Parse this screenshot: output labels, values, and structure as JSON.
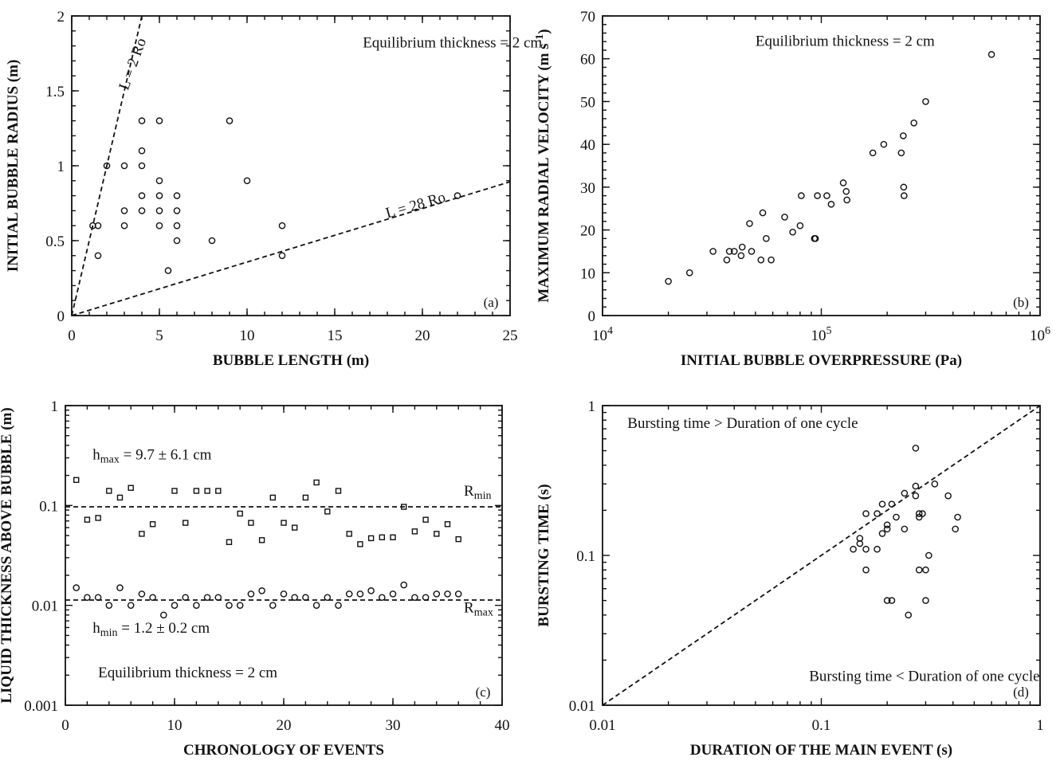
{
  "chart_data": [
    {
      "id": "a",
      "type": "scatter",
      "panel_label": "(a)",
      "xlabel": "BUBBLE LENGTH (m)",
      "ylabel": "INITIAL BUBBLE RADIUS (m)",
      "xscale": "linear",
      "yscale": "linear",
      "xlim": [
        0,
        25
      ],
      "ylim": [
        0,
        2
      ],
      "x_ticks": [
        0,
        5,
        10,
        15,
        20,
        25
      ],
      "x_tick_labels": [
        "0",
        "5",
        "10",
        "15",
        "20",
        "25"
      ],
      "y_ticks": [
        0,
        0.5,
        1,
        1.5,
        2
      ],
      "y_tick_labels": [
        "0",
        "0.5",
        "1",
        "1.5",
        "2"
      ],
      "grid": false,
      "marker": "circle",
      "annotations": [
        {
          "text": "Equilibrium thickness = 2 cm",
          "x": 16.6,
          "y": 1.79
        },
        {
          "text": "L = 2 Ro",
          "x": 3.2,
          "y": 1.5,
          "rotate": -70
        },
        {
          "text": "L = 28 Ro",
          "x": 18.0,
          "y": 0.65,
          "rotate": -16
        }
      ],
      "lines": [
        {
          "label": "L = 2 Ro",
          "points": [
            [
              0,
              0
            ],
            [
              4,
              2
            ]
          ]
        },
        {
          "label": "L = 28 Ro",
          "points": [
            [
              0,
              0
            ],
            [
              25,
              0.893
            ]
          ]
        }
      ],
      "points": [
        [
          1.2,
          0.6
        ],
        [
          1.5,
          0.6
        ],
        [
          1.5,
          0.4
        ],
        [
          2.0,
          1.0
        ],
        [
          3.0,
          1.0
        ],
        [
          3.0,
          0.7
        ],
        [
          3.0,
          0.6
        ],
        [
          4.0,
          1.3
        ],
        [
          4.0,
          1.1
        ],
        [
          4.0,
          1.0
        ],
        [
          4.0,
          0.8
        ],
        [
          4.0,
          0.7
        ],
        [
          5.0,
          1.3
        ],
        [
          5.0,
          0.9
        ],
        [
          5.0,
          0.8
        ],
        [
          5.0,
          0.7
        ],
        [
          5.0,
          0.6
        ],
        [
          5.5,
          0.3
        ],
        [
          6.0,
          0.8
        ],
        [
          6.0,
          0.7
        ],
        [
          6.0,
          0.6
        ],
        [
          6.0,
          0.5
        ],
        [
          8.0,
          0.5
        ],
        [
          9.0,
          1.3
        ],
        [
          10.0,
          0.9
        ],
        [
          12.0,
          0.6
        ],
        [
          12.0,
          0.4
        ],
        [
          22.0,
          0.8
        ]
      ]
    },
    {
      "id": "b",
      "type": "scatter",
      "panel_label": "(b)",
      "xlabel": "INITIAL BUBBLE OVERPRESSURE (Pa)",
      "ylabel": "MAXIMUM RADIAL VELOCITY (m s-1)",
      "xscale": "log",
      "yscale": "linear",
      "xlim": [
        10000,
        1000000
      ],
      "ylim": [
        0,
        70
      ],
      "x_ticks": [
        10000,
        100000,
        1000000
      ],
      "x_tick_labels": [
        "10^4",
        "10^5",
        "10^6"
      ],
      "y_ticks": [
        0,
        10,
        20,
        30,
        40,
        50,
        60,
        70
      ],
      "y_tick_labels": [
        "0",
        "10",
        "20",
        "30",
        "40",
        "50",
        "60",
        "70"
      ],
      "grid": false,
      "marker": "circle",
      "annotations": [
        {
          "text": "Equilibrium thickness = 2 cm",
          "x": 50000,
          "y": 63
        }
      ],
      "points": [
        [
          20000,
          8
        ],
        [
          25000,
          10
        ],
        [
          32000,
          15
        ],
        [
          37000,
          13
        ],
        [
          38000,
          15
        ],
        [
          40000,
          15
        ],
        [
          43000,
          14
        ],
        [
          43500,
          16
        ],
        [
          47000,
          21.5
        ],
        [
          48000,
          15
        ],
        [
          53000,
          13
        ],
        [
          54000,
          24
        ],
        [
          56000,
          18
        ],
        [
          59000,
          13
        ],
        [
          68000,
          23
        ],
        [
          74000,
          19.5
        ],
        [
          80000,
          21
        ],
        [
          81000,
          28
        ],
        [
          93000,
          18
        ],
        [
          94000,
          18
        ],
        [
          96000,
          28
        ],
        [
          106000,
          28
        ],
        [
          111000,
          26
        ],
        [
          126000,
          31
        ],
        [
          130000,
          29
        ],
        [
          131000,
          27
        ],
        [
          172000,
          38
        ],
        [
          193000,
          40
        ],
        [
          232000,
          38
        ],
        [
          237000,
          42
        ],
        [
          238000,
          30
        ],
        [
          239000,
          28
        ],
        [
          265000,
          45
        ],
        [
          300000,
          50
        ],
        [
          600000,
          61
        ]
      ]
    },
    {
      "id": "c",
      "type": "scatter",
      "panel_label": "(c)",
      "xlabel": "CHRONOLOGY OF EVENTS",
      "ylabel": "LIQUID THICKNESS ABOVE BUBBLE (m)",
      "xscale": "linear",
      "yscale": "log",
      "xlim": [
        0,
        40
      ],
      "ylim": [
        0.001,
        1
      ],
      "x_ticks": [
        0,
        10,
        20,
        30,
        40
      ],
      "x_tick_labels": [
        "0",
        "10",
        "20",
        "30",
        "40"
      ],
      "y_ticks": [
        0.001,
        0.01,
        0.1,
        1
      ],
      "y_tick_labels": [
        "0.001",
        "0.01",
        "0.1",
        "1"
      ],
      "grid": false,
      "annotations": [
        {
          "text": "hmax = 9.7 ± 6.1 cm",
          "x": 2.5,
          "y": 0.29
        },
        {
          "text": "hmin = 1.2 ± 0.2 cm",
          "x": 2.5,
          "y": 0.0053
        },
        {
          "text": "Equilibrium thickness = 2 cm",
          "x": 3.0,
          "y": 0.0019
        },
        {
          "text": "Rmin",
          "x": 36.5,
          "y": 0.125
        },
        {
          "text": "Rmax",
          "x": 36.5,
          "y": 0.0085
        }
      ],
      "hlines": [
        {
          "label": "Rmin",
          "y": 0.097
        },
        {
          "label": "Rmax",
          "y": 0.0113
        }
      ],
      "series": [
        {
          "marker": "square",
          "x": [
            1,
            2,
            3,
            4,
            5,
            6,
            7,
            8,
            10,
            11,
            12,
            13,
            14,
            15,
            16,
            17,
            18,
            19,
            20,
            21,
            22,
            23,
            24,
            25,
            26,
            27,
            28,
            29,
            30,
            31,
            32,
            33,
            34,
            35,
            36
          ],
          "values": [
            0.18,
            0.072,
            0.075,
            0.14,
            0.12,
            0.15,
            0.052,
            0.065,
            0.14,
            0.067,
            0.14,
            0.14,
            0.14,
            0.043,
            0.083,
            0.067,
            0.045,
            0.12,
            0.067,
            0.06,
            0.12,
            0.17,
            0.087,
            0.14,
            0.052,
            0.041,
            0.047,
            0.048,
            0.048,
            0.097,
            0.055,
            0.072,
            0.052,
            0.065,
            0.046
          ]
        },
        {
          "marker": "circle",
          "x": [
            1,
            2,
            3,
            4,
            5,
            6,
            7,
            8,
            9,
            10,
            11,
            12,
            13,
            14,
            15,
            16,
            17,
            18,
            19,
            20,
            21,
            22,
            23,
            24,
            25,
            26,
            27,
            28,
            29,
            30,
            31,
            32,
            33,
            34,
            35,
            36
          ],
          "values": [
            0.015,
            0.012,
            0.012,
            0.01,
            0.015,
            0.01,
            0.013,
            0.012,
            0.008,
            0.01,
            0.012,
            0.01,
            0.012,
            0.012,
            0.01,
            0.01,
            0.013,
            0.014,
            0.01,
            0.013,
            0.012,
            0.012,
            0.01,
            0.012,
            0.01,
            0.013,
            0.013,
            0.014,
            0.012,
            0.013,
            0.016,
            0.012,
            0.012,
            0.013,
            0.013,
            0.013
          ]
        }
      ]
    },
    {
      "id": "d",
      "type": "scatter",
      "panel_label": "(d)",
      "xlabel": "DURATION OF THE MAIN EVENT (s)",
      "ylabel": "BURSTING TIME (s)",
      "xscale": "log",
      "yscale": "log",
      "xlim": [
        0.01,
        1
      ],
      "ylim": [
        0.01,
        1
      ],
      "x_ticks": [
        0.01,
        0.1,
        1
      ],
      "x_tick_labels": [
        "0.01",
        "0.1",
        "1"
      ],
      "y_ticks": [
        0.01,
        0.1,
        1
      ],
      "y_tick_labels": [
        "0.01",
        "0.1",
        "1"
      ],
      "grid": false,
      "marker": "circle",
      "annotations": [
        {
          "text": "Bursting time > Duration of one cycle",
          "x": 0.013,
          "y": 0.71
        },
        {
          "text": "Bursting time < Duration of one cycle",
          "x": 0.088,
          "y": 0.0145
        }
      ],
      "lines": [
        {
          "label": "1:1",
          "points": [
            [
              0.01,
              0.01
            ],
            [
              1,
              1
            ]
          ]
        }
      ],
      "points": [
        [
          0.14,
          0.11
        ],
        [
          0.15,
          0.12
        ],
        [
          0.15,
          0.13
        ],
        [
          0.16,
          0.11
        ],
        [
          0.16,
          0.19
        ],
        [
          0.16,
          0.08
        ],
        [
          0.18,
          0.11
        ],
        [
          0.18,
          0.19
        ],
        [
          0.19,
          0.14
        ],
        [
          0.19,
          0.22
        ],
        [
          0.2,
          0.15
        ],
        [
          0.2,
          0.16
        ],
        [
          0.21,
          0.22
        ],
        [
          0.2,
          0.05
        ],
        [
          0.21,
          0.05
        ],
        [
          0.22,
          0.18
        ],
        [
          0.24,
          0.15
        ],
        [
          0.24,
          0.26
        ],
        [
          0.25,
          0.04
        ],
        [
          0.27,
          0.52
        ],
        [
          0.27,
          0.29
        ],
        [
          0.27,
          0.25
        ],
        [
          0.28,
          0.18
        ],
        [
          0.28,
          0.19
        ],
        [
          0.29,
          0.19
        ],
        [
          0.28,
          0.08
        ],
        [
          0.3,
          0.08
        ],
        [
          0.3,
          0.05
        ],
        [
          0.31,
          0.1
        ],
        [
          0.33,
          0.3
        ],
        [
          0.38,
          0.25
        ],
        [
          0.41,
          0.15
        ],
        [
          0.42,
          0.18
        ]
      ]
    }
  ]
}
